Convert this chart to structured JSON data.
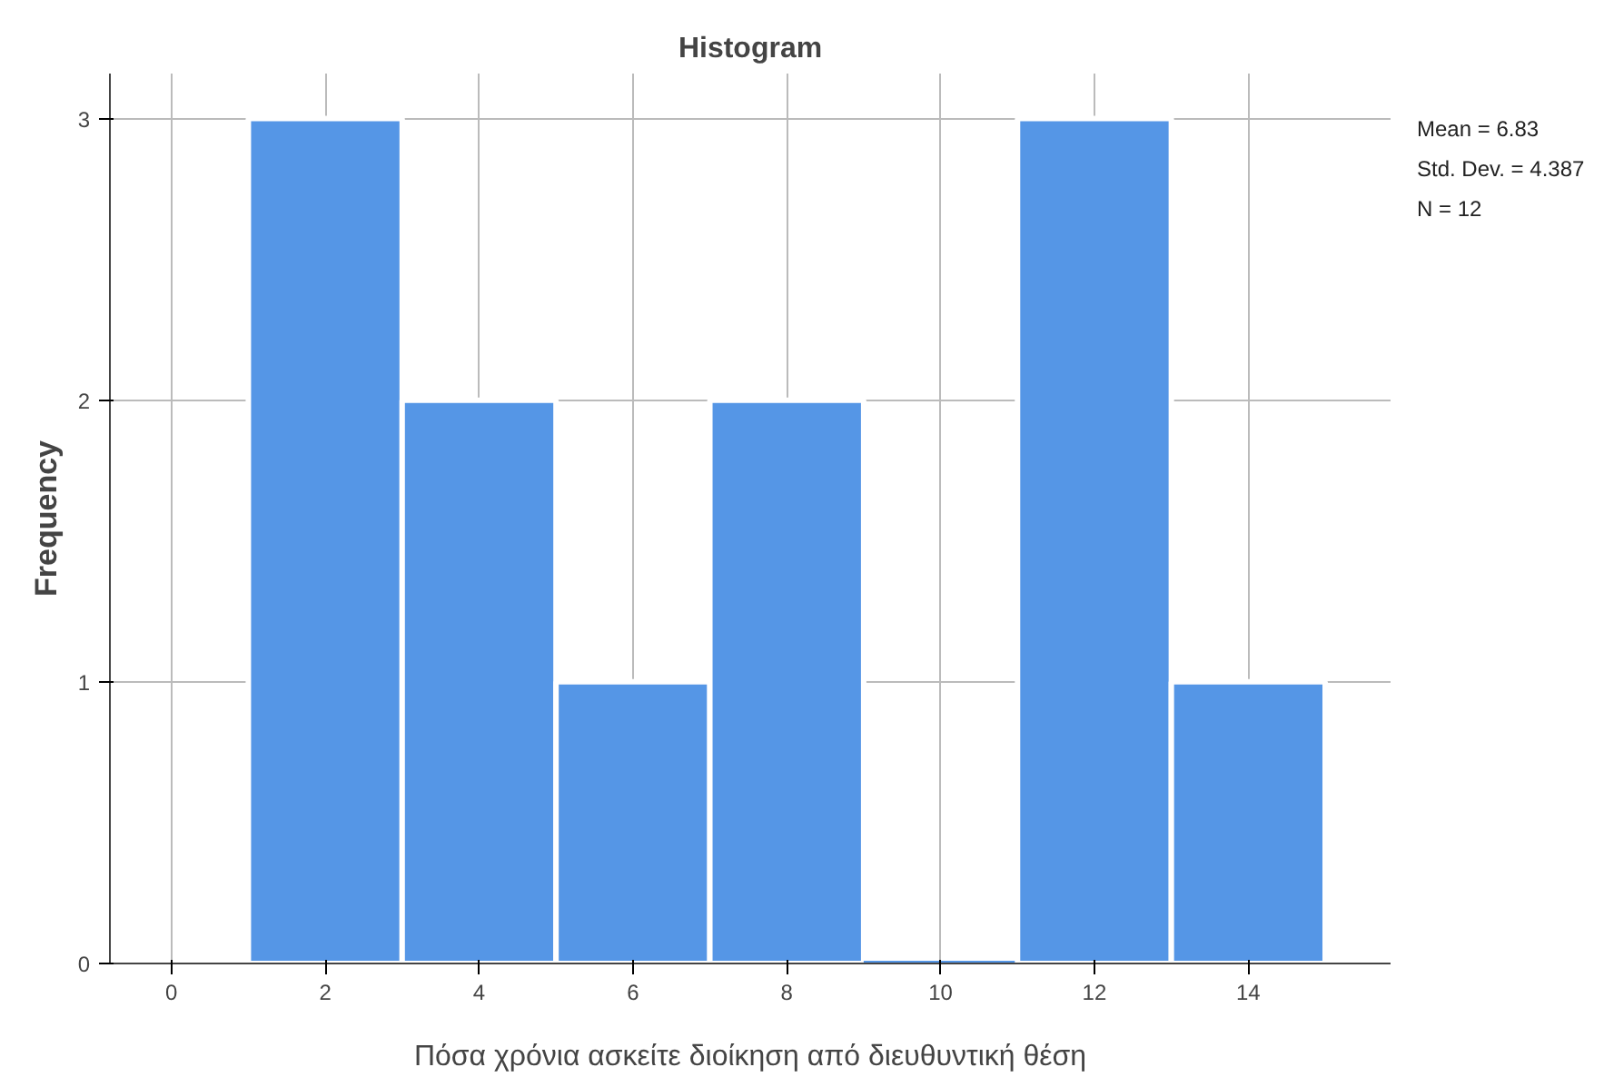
{
  "chart_data": {
    "type": "histogram",
    "title": "Histogram",
    "xlabel": "Πόσα χρόνια ασκείτε διοίκηση από διευθυντική θέση",
    "ylabel": "Frequency",
    "bins": [
      1,
      3,
      5,
      7,
      9,
      11,
      13,
      15
    ],
    "values": [
      3,
      2,
      1,
      2,
      0,
      3,
      1
    ],
    "color": "#5596e6",
    "xlim": [
      -0.8,
      15.85
    ],
    "ylim": [
      0,
      3.16
    ],
    "xticks": [
      0,
      2,
      4,
      6,
      8,
      10,
      12,
      14
    ],
    "yticks": [
      0,
      1,
      2,
      3
    ],
    "grid": true,
    "annotations": [
      "Mean = 6.83",
      "Std. Dev. = 4.387",
      "N = 12"
    ]
  }
}
